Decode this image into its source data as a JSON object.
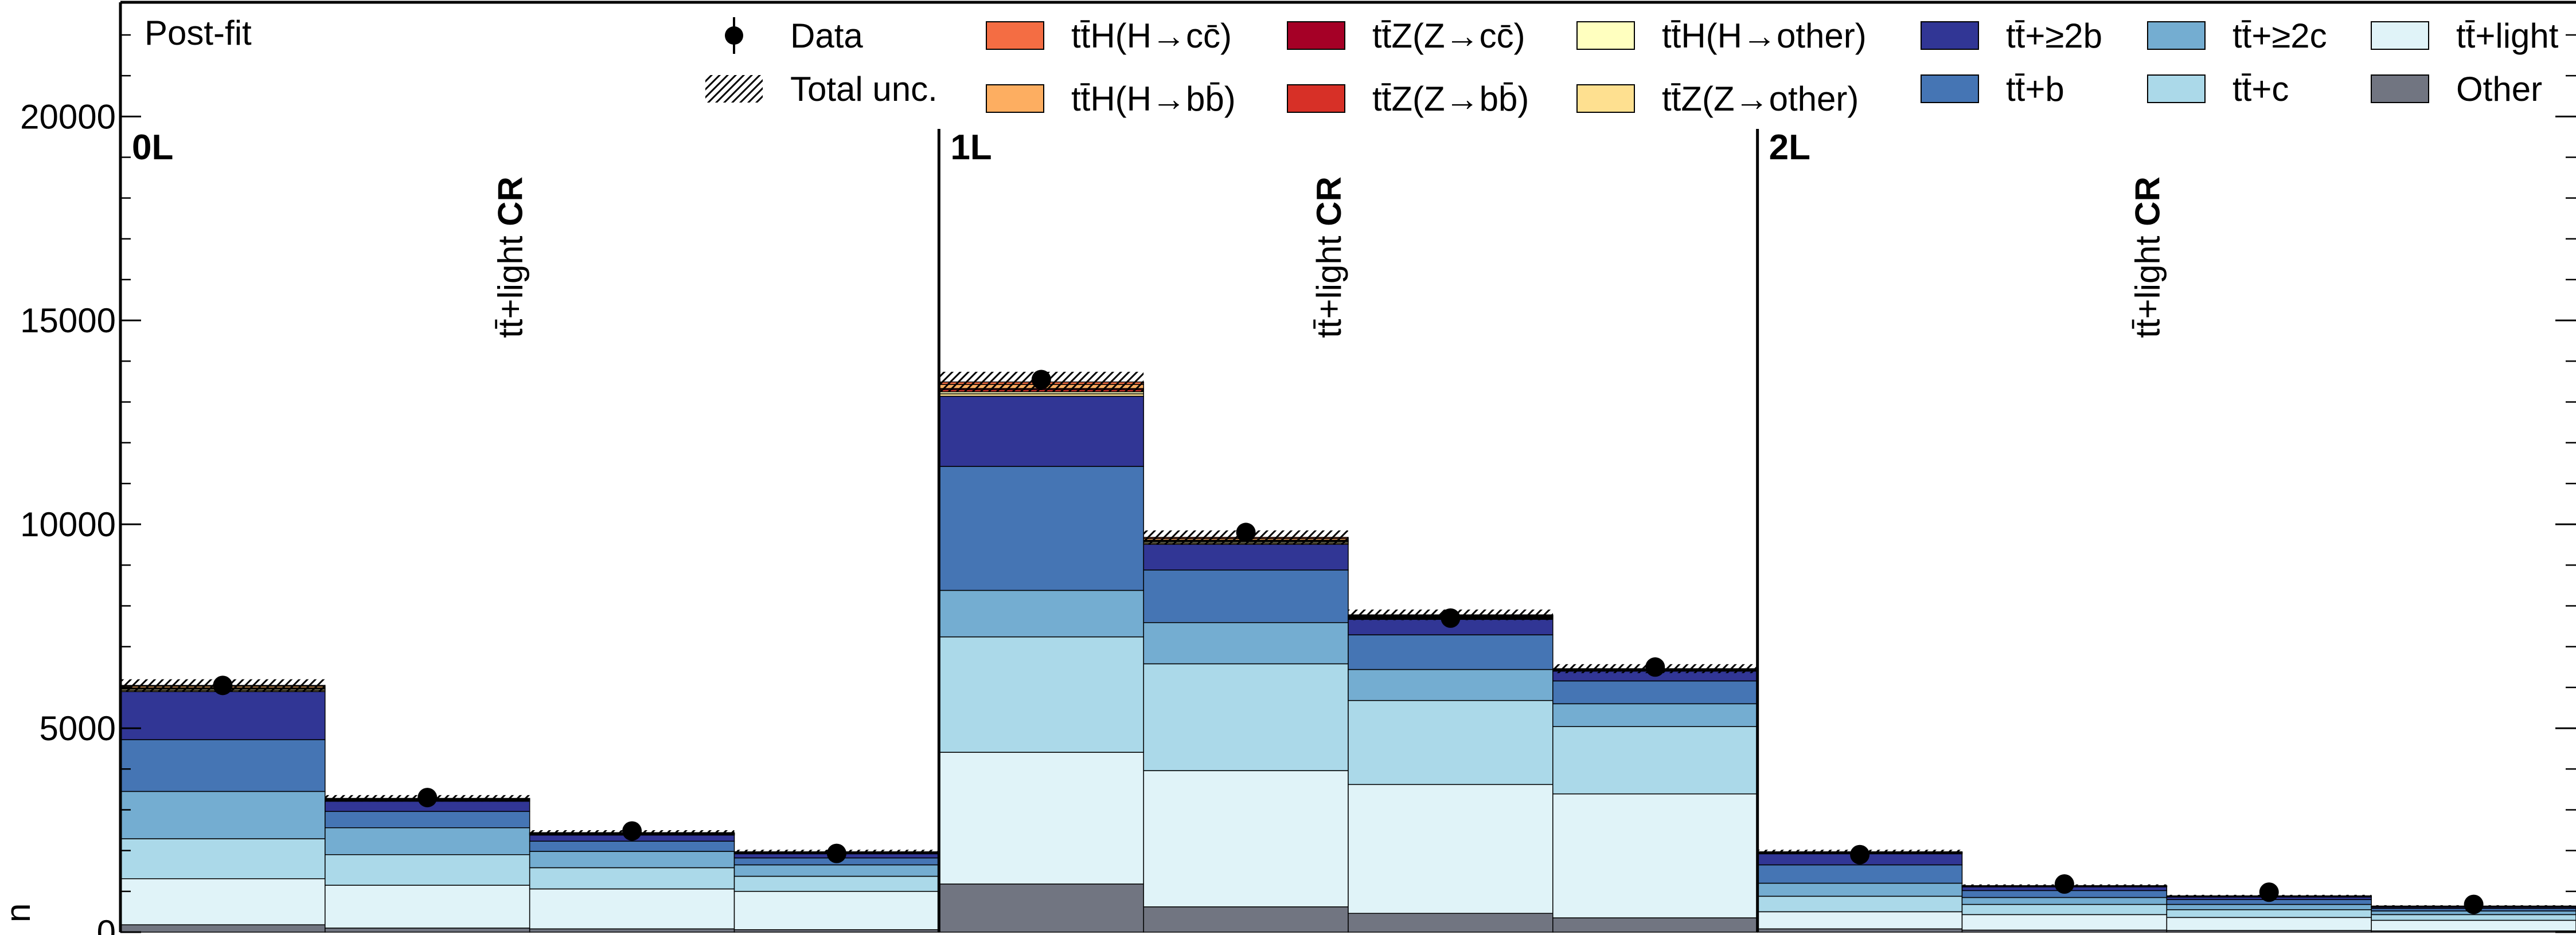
{
  "chart_data": {
    "type": "bar",
    "stacked": true,
    "title": "",
    "ylabel": "n",
    "ylim": [
      0,
      22800
    ],
    "y_ticks": [
      0,
      5000,
      10000,
      15000,
      20000
    ],
    "y_tick_labels": [
      "0",
      "5000",
      "10000",
      "15000",
      "20000"
    ],
    "fit_label": "Post-fit",
    "legend": [
      {
        "key": "data",
        "label": "Data"
      },
      {
        "key": "unc",
        "label": "Total unc."
      },
      {
        "key": "tth_cc",
        "label": "tt̄H(H→cc̄)",
        "color": "#f46d43"
      },
      {
        "key": "tth_bb",
        "label": "tt̄H(H→bb̄)",
        "color": "#fdae61"
      },
      {
        "key": "ttz_cc",
        "label": "tt̄Z(Z→cc̄)",
        "color": "#a50026"
      },
      {
        "key": "ttz_bb",
        "label": "tt̄Z(Z→bb̄)",
        "color": "#d73027"
      },
      {
        "key": "tth_other",
        "label": "tt̄H(H→other)",
        "color": "#ffffbf"
      },
      {
        "key": "ttz_other",
        "label": "tt̄Z(Z→other)",
        "color": "#fee090"
      },
      {
        "key": "tt_2b",
        "label": "tt̄+≥2b",
        "color": "#313695"
      },
      {
        "key": "tt_b",
        "label": "tt̄+b",
        "color": "#4575b4"
      },
      {
        "key": "tt_2c",
        "label": "tt̄+≥2c",
        "color": "#74add1"
      },
      {
        "key": "tt_c",
        "label": "tt̄+c",
        "color": "#abd9e9"
      },
      {
        "key": "tt_light",
        "label": "tt̄+light",
        "color": "#e0f3f8"
      },
      {
        "key": "other",
        "label": "Other",
        "color": "#717581"
      }
    ],
    "stack_order": [
      "other",
      "tt_light",
      "tt_c",
      "tt_2c",
      "tt_b",
      "tt_2b",
      "ttz_other",
      "tth_other",
      "ttz_bb",
      "ttz_cc",
      "tth_bb",
      "tth_cc"
    ],
    "regions": [
      {
        "name": "0L",
        "cr_prefix": "tt̄+light",
        "cr_suffix": "CR",
        "bins": [
          {
            "other": 180,
            "tt_light": 1130,
            "tt_c": 980,
            "tt_2c": 1160,
            "tt_b": 1270,
            "tt_2b": 1180,
            "ttz_other": 30,
            "tth_other": 30,
            "ttz_bb": 20,
            "ttz_cc": 10,
            "tth_bb": 40,
            "tth_cc": 20,
            "data": 6050,
            "unc": 150
          },
          {
            "other": 100,
            "tt_light": 1050,
            "tt_c": 750,
            "tt_2c": 660,
            "tt_b": 400,
            "tt_2b": 250,
            "ttz_other": 10,
            "tth_other": 10,
            "ttz_bb": 10,
            "ttz_cc": 10,
            "tth_bb": 20,
            "tth_cc": 10,
            "data": 3300,
            "unc": 80
          },
          {
            "other": 80,
            "tt_light": 980,
            "tt_c": 520,
            "tt_2c": 400,
            "tt_b": 250,
            "tt_2b": 150,
            "ttz_other": 10,
            "tth_other": 10,
            "ttz_bb": 10,
            "ttz_cc": 10,
            "tth_bb": 10,
            "tth_cc": 10,
            "data": 2480,
            "unc": 60
          },
          {
            "other": 60,
            "tt_light": 940,
            "tt_c": 370,
            "tt_2c": 280,
            "tt_b": 170,
            "tt_2b": 100,
            "ttz_other": 10,
            "tth_other": 10,
            "ttz_bb": 5,
            "ttz_cc": 5,
            "tth_bb": 10,
            "tth_cc": 10,
            "data": 1930,
            "unc": 50
          }
        ]
      },
      {
        "name": "1L",
        "cr_prefix": "tt̄+light",
        "cr_suffix": "CR",
        "bins": [
          {
            "other": 1180,
            "tt_light": 3230,
            "tt_c": 2830,
            "tt_2c": 1140,
            "tt_b": 3040,
            "tt_2b": 1720,
            "ttz_other": 60,
            "tth_other": 50,
            "ttz_bb": 50,
            "ttz_cc": 30,
            "tth_bb": 100,
            "tth_cc": 60,
            "data": 13550,
            "unc": 250
          },
          {
            "other": 620,
            "tt_light": 3340,
            "tt_c": 2620,
            "tt_2c": 1010,
            "tt_b": 1290,
            "tt_2b": 630,
            "ttz_other": 30,
            "tth_other": 30,
            "ttz_bb": 20,
            "ttz_cc": 20,
            "tth_bb": 40,
            "tth_cc": 30,
            "data": 9800,
            "unc": 170
          },
          {
            "other": 460,
            "tt_light": 3160,
            "tt_c": 2060,
            "tt_2c": 760,
            "tt_b": 850,
            "tt_2b": 380,
            "ttz_other": 20,
            "tth_other": 20,
            "ttz_bb": 20,
            "ttz_cc": 10,
            "tth_bb": 20,
            "tth_cc": 20,
            "data": 7700,
            "unc": 130
          },
          {
            "other": 350,
            "tt_light": 3040,
            "tt_c": 1650,
            "tt_2c": 560,
            "tt_b": 560,
            "tt_2b": 240,
            "ttz_other": 10,
            "tth_other": 10,
            "ttz_bb": 10,
            "ttz_cc": 10,
            "tth_bb": 10,
            "tth_cc": 10,
            "data": 6500,
            "unc": 110
          }
        ]
      },
      {
        "name": "2L",
        "cr_prefix": "tt̄+light",
        "cr_suffix": "CR",
        "bins": [
          {
            "other": 80,
            "tt_light": 420,
            "tt_c": 380,
            "tt_2c": 320,
            "tt_b": 450,
            "tt_2b": 270,
            "ttz_other": 10,
            "tth_other": 10,
            "ttz_bb": 5,
            "ttz_cc": 5,
            "tth_bb": 10,
            "tth_cc": 10,
            "data": 1900,
            "unc": 50
          },
          {
            "other": 50,
            "tt_light": 380,
            "tt_c": 250,
            "tt_2c": 170,
            "tt_b": 170,
            "tt_2b": 90,
            "ttz_other": 5,
            "tth_other": 5,
            "ttz_bb": 5,
            "ttz_cc": 5,
            "tth_bb": 5,
            "tth_cc": 5,
            "data": 1180,
            "unc": 30
          },
          {
            "other": 40,
            "tt_light": 320,
            "tt_c": 190,
            "tt_2c": 130,
            "tt_b": 120,
            "tt_2b": 60,
            "ttz_other": 5,
            "tth_other": 5,
            "ttz_bb": 5,
            "ttz_cc": 5,
            "tth_bb": 5,
            "tth_cc": 5,
            "data": 980,
            "unc": 25
          },
          {
            "other": 30,
            "tt_light": 260,
            "tt_c": 140,
            "tt_2c": 90,
            "tt_b": 60,
            "tt_2b": 30,
            "ttz_other": 5,
            "tth_other": 5,
            "ttz_bb": 5,
            "ttz_cc": 5,
            "tth_bb": 5,
            "tth_cc": 5,
            "data": 680,
            "unc": 20
          }
        ]
      }
    ]
  }
}
